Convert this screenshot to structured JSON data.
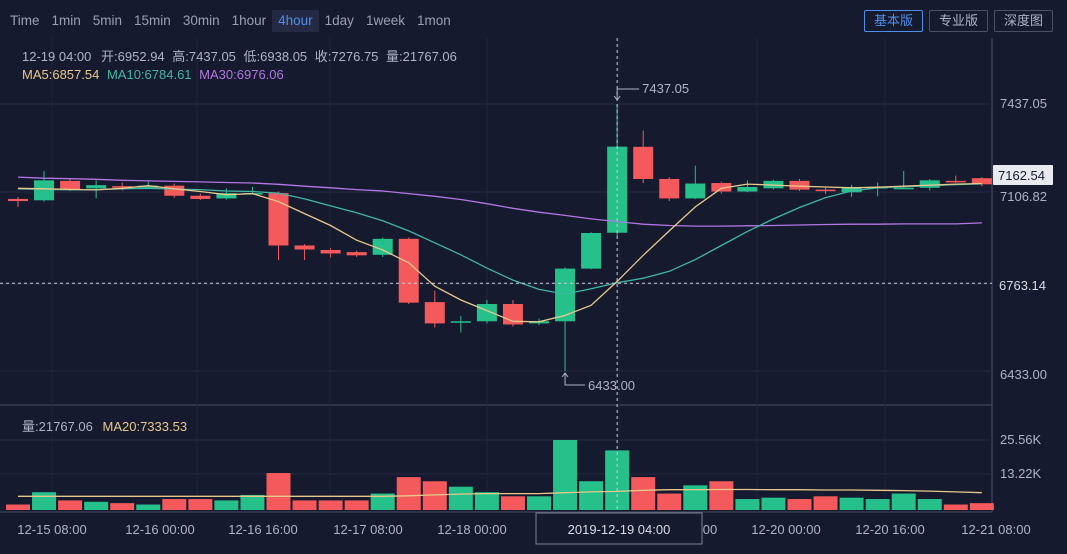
{
  "toolbar": {
    "intervals": [
      "Time",
      "1min",
      "5min",
      "15min",
      "30min",
      "1hour",
      "4hour",
      "1day",
      "1week",
      "1mon"
    ],
    "active_interval": "4hour",
    "views": [
      "基本版",
      "专业版",
      "深度图"
    ],
    "active_view": "基本版"
  },
  "info": {
    "datetime": "12-19 04:00",
    "open_label": "开:",
    "open": "6952.94",
    "high_label": "高:",
    "high": "7437.05",
    "low_label": "低:",
    "low": "6938.05",
    "close_label": "收:",
    "close": "7276.75",
    "volume_label": "量:",
    "volume": "21767.06"
  },
  "ma": {
    "ma5_label": "MA5:",
    "ma5": "6857.54",
    "ma10_label": "MA10:",
    "ma10": "6784.61",
    "ma30_label": "MA30:",
    "ma30": "6976.06"
  },
  "volume_info": {
    "vol_label": "量:",
    "vol": "21767.06",
    "ma20_label": "MA20:",
    "ma20": "7333.53"
  },
  "colors": {
    "up": "#26c08b",
    "down": "#f45a5c",
    "ma5": "#e8c88a",
    "ma10": "#3fb7a6",
    "ma30": "#b277e3",
    "bg": "#161a2e",
    "grid": "#262b42",
    "axis": "#5a6078"
  },
  "crosshair": {
    "price_label": "6763.14",
    "date_label": "2019-12-19 04:00",
    "high_marker": "7437.05",
    "low_marker": "6433.00"
  },
  "last_price": "7162.54",
  "chart_data": {
    "type": "candlestick",
    "price_axis_ticks": [
      "7437.05",
      "7106.82",
      "6763.14",
      "6433.00"
    ],
    "volume_axis_ticks": [
      "25.56K",
      "13.22K"
    ],
    "x_tick_labels": [
      "12-15 08:00",
      "12-16 00:00",
      "12-16 16:00",
      "12-17 08:00",
      "12-18 00:00",
      "00",
      "12-20 00:00",
      "12-20 16:00",
      "12-21 08:00"
    ],
    "candles": [
      {
        "o": 7080,
        "c": 7072,
        "h": 7088,
        "l": 7050,
        "v": 2000
      },
      {
        "o": 7075,
        "c": 7150,
        "h": 7185,
        "l": 7070,
        "v": 6500
      },
      {
        "o": 7148,
        "c": 7115,
        "h": 7155,
        "l": 7110,
        "v": 3500
      },
      {
        "o": 7120,
        "c": 7132,
        "h": 7150,
        "l": 7082,
        "v": 3000
      },
      {
        "o": 7128,
        "c": 7122,
        "h": 7142,
        "l": 7112,
        "v": 2500
      },
      {
        "o": 7122,
        "c": 7130,
        "h": 7145,
        "l": 7118,
        "v": 2000
      },
      {
        "o": 7130,
        "c": 7092,
        "h": 7138,
        "l": 7085,
        "v": 4000
      },
      {
        "o": 7092,
        "c": 7080,
        "h": 7100,
        "l": 7076,
        "v": 4000
      },
      {
        "o": 7082,
        "c": 7102,
        "h": 7120,
        "l": 7078,
        "v": 3500
      },
      {
        "o": 7102,
        "c": 7102,
        "h": 7125,
        "l": 7098,
        "v": 5500
      },
      {
        "o": 7102,
        "c": 6905,
        "h": 7108,
        "l": 6850,
        "v": 13500
      },
      {
        "o": 6905,
        "c": 6890,
        "h": 6910,
        "l": 6850,
        "v": 3500
      },
      {
        "o": 6888,
        "c": 6875,
        "h": 6895,
        "l": 6860,
        "v": 3500
      },
      {
        "o": 6880,
        "c": 6868,
        "h": 6885,
        "l": 6862,
        "v": 3500
      },
      {
        "o": 6870,
        "c": 6930,
        "h": 6935,
        "l": 6862,
        "v": 6000
      },
      {
        "o": 6930,
        "c": 6690,
        "h": 6935,
        "l": 6685,
        "v": 12000
      },
      {
        "o": 6692,
        "c": 6612,
        "h": 6735,
        "l": 6596,
        "v": 10500
      },
      {
        "o": 6618,
        "c": 6620,
        "h": 6640,
        "l": 6578,
        "v": 8500
      },
      {
        "o": 6620,
        "c": 6685,
        "h": 6700,
        "l": 6612,
        "v": 6500
      },
      {
        "o": 6685,
        "c": 6608,
        "h": 6700,
        "l": 6600,
        "v": 5000
      },
      {
        "o": 6612,
        "c": 6620,
        "h": 6630,
        "l": 6605,
        "v": 5000
      },
      {
        "o": 6620,
        "c": 6818,
        "h": 6822,
        "l": 6433,
        "v": 25560
      },
      {
        "o": 6818,
        "c": 6952,
        "h": 6955,
        "l": 6815,
        "v": 10500
      },
      {
        "o": 6952.94,
        "c": 7276.75,
        "h": 7437.05,
        "l": 6938.05,
        "v": 21767.06
      },
      {
        "o": 7276,
        "c": 7155,
        "h": 7337,
        "l": 7140,
        "v": 12000
      },
      {
        "o": 7155,
        "c": 7082,
        "h": 7162,
        "l": 7072,
        "v": 6000
      },
      {
        "o": 7082,
        "c": 7138,
        "h": 7205,
        "l": 7080,
        "v": 9000
      },
      {
        "o": 7140,
        "c": 7108,
        "h": 7145,
        "l": 7100,
        "v": 10500
      },
      {
        "o": 7108,
        "c": 7125,
        "h": 7150,
        "l": 7105,
        "v": 4000
      },
      {
        "o": 7120,
        "c": 7148,
        "h": 7152,
        "l": 7116,
        "v": 4500
      },
      {
        "o": 7148,
        "c": 7115,
        "h": 7155,
        "l": 7110,
        "v": 4000
      },
      {
        "o": 7115,
        "c": 7110,
        "h": 7122,
        "l": 7098,
        "v": 5000
      },
      {
        "o": 7105,
        "c": 7125,
        "h": 7133,
        "l": 7088,
        "v": 4500
      },
      {
        "o": 7120,
        "c": 7125,
        "h": 7142,
        "l": 7090,
        "v": 4000
      },
      {
        "o": 7120,
        "c": 7122,
        "h": 7185,
        "l": 7118,
        "v": 6000
      },
      {
        "o": 7122,
        "c": 7150,
        "h": 7155,
        "l": 7112,
        "v": 4000
      },
      {
        "o": 7148,
        "c": 7146,
        "h": 7168,
        "l": 7140,
        "v": 2000
      },
      {
        "o": 7158,
        "c": 7135,
        "h": 7162,
        "l": 7128,
        "v": 2500
      }
    ],
    "ma5": [
      7120,
      7118,
      7116,
      7114,
      7120,
      7130,
      7118,
      7108,
      7096,
      7100,
      7070,
      7025,
      6980,
      6925,
      6888,
      6840,
      6752,
      6700,
      6660,
      6620,
      6618,
      6642,
      6680,
      6770,
      6868,
      6960,
      7050,
      7120,
      7136,
      7132,
      7128,
      7125,
      7122,
      7124,
      7128,
      7132,
      7136,
      7138
    ],
    "ma10": [
      7118,
      7116,
      7114,
      7115,
      7118,
      7120,
      7117,
      7115,
      7110,
      7108,
      7102,
      7080,
      7054,
      7028,
      6998,
      6960,
      6915,
      6870,
      6820,
      6775,
      6740,
      6722,
      6742,
      6765,
      6782,
      6808,
      6852,
      6905,
      6958,
      7005,
      7048,
      7085,
      7110,
      7122,
      7126,
      7130,
      7134,
      7137
    ],
    "ma30": [
      7162,
      7158,
      7156,
      7154,
      7150,
      7148,
      7146,
      7144,
      7142,
      7140,
      7135,
      7128,
      7122,
      7115,
      7110,
      7100,
      7090,
      7078,
      7062,
      7045,
      7030,
      7018,
      7005,
      6995,
      6985,
      6980,
      6978,
      6978,
      6979,
      6980,
      6982,
      6984,
      6985,
      6985,
      6986,
      6986,
      6986,
      6990
    ],
    "volume_ma20": [
      5000,
      5000,
      5000,
      5000,
      5000,
      5000,
      5000,
      5000,
      5000,
      5000,
      5000,
      5000,
      5000,
      5000,
      5000,
      5200,
      5500,
      5800,
      6000,
      6000,
      6000,
      6300,
      6600,
      6800,
      7200,
      7400,
      7400,
      7500,
      7500,
      7400,
      7400,
      7300,
      7300,
      7200,
      7100,
      6900,
      6600,
      6300
    ]
  }
}
